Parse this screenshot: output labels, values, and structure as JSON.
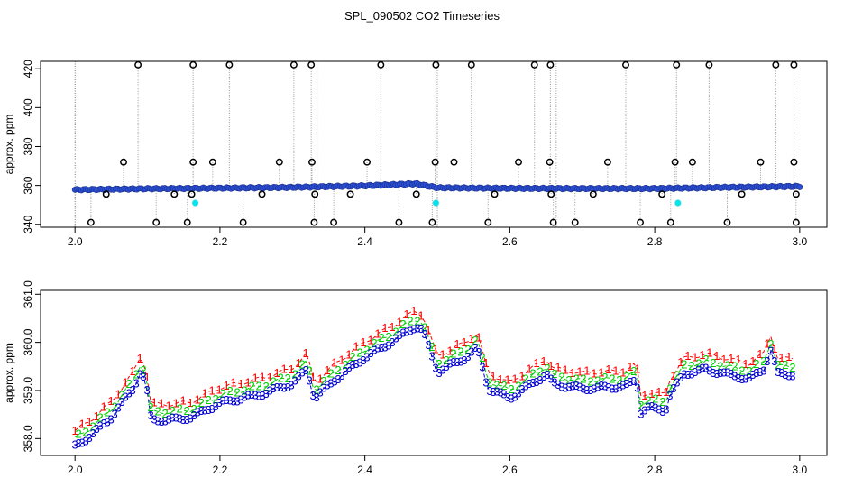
{
  "title": "SPL_090502  CO2 Timeseries",
  "colors": {
    "series1": "#ff0000",
    "series2": "#00cd00",
    "series3": "#0000cd",
    "dot_blue": "#2a4fd6",
    "dot_cyan": "#00e5ee",
    "outlier": "#000000",
    "line_gray": "#9a9a9a"
  },
  "chart_data": [
    {
      "type": "scatter",
      "panel": "top",
      "ylabel": "approx. ppm",
      "xlim": [
        2.0,
        3.0
      ],
      "ylim": [
        340,
        422
      ],
      "xticks": [
        "2.0",
        "2.2",
        "2.4",
        "2.6",
        "2.8",
        "3.0"
      ],
      "yticks": [
        "340",
        "360",
        "380",
        "400",
        "420"
      ],
      "main_series": {
        "x_start": 2.0,
        "x_end": 3.0,
        "count": 340,
        "baseline": [
          [
            2.0,
            357.8
          ],
          [
            2.1,
            358.3
          ],
          [
            2.2,
            358.6
          ],
          [
            2.3,
            359.0
          ],
          [
            2.4,
            359.8
          ],
          [
            2.47,
            360.9
          ],
          [
            2.5,
            358.8
          ],
          [
            2.6,
            358.5
          ],
          [
            2.7,
            358.4
          ],
          [
            2.8,
            358.4
          ],
          [
            2.9,
            359.0
          ],
          [
            3.0,
            359.5
          ]
        ]
      },
      "cyan_points": [
        [
          2.166,
          351
        ],
        [
          2.498,
          351
        ],
        [
          2.832,
          351
        ]
      ],
      "outliers_high": [
        2.087,
        2.163,
        2.213,
        2.302,
        2.326,
        2.422,
        2.498,
        2.547,
        2.634,
        2.656,
        2.76,
        2.83,
        2.875,
        2.967,
        2.992
      ],
      "outliers_low": [
        2.022,
        2.112,
        2.155,
        2.232,
        2.33,
        2.357,
        2.447,
        2.493,
        2.57,
        2.66,
        2.69,
        2.78,
        2.822,
        2.9,
        2.995
      ],
      "outliers_372": [
        2.067,
        2.163,
        2.19,
        2.282,
        2.327,
        2.403,
        2.497,
        2.523,
        2.612,
        2.655,
        2.735,
        2.828,
        2.852,
        2.946,
        2.992
      ],
      "outliers_356": [
        2.043,
        2.137,
        2.161,
        2.258,
        2.331,
        2.38,
        2.471,
        2.579,
        2.657,
        2.715,
        2.81,
        2.92,
        2.995
      ]
    },
    {
      "type": "line",
      "panel": "bottom",
      "ylabel": "approx. ppm",
      "xlim": [
        2.0,
        3.0
      ],
      "ylim": [
        357.8,
        361.0
      ],
      "xticks": [
        "2.0",
        "2.2",
        "2.4",
        "2.6",
        "2.8",
        "3.0"
      ],
      "yticks": [
        "358.0",
        "359.0",
        "360.0",
        "361.0"
      ],
      "x_start": 2.0,
      "x_end": 2.99,
      "count": 200,
      "base_curve": [
        [
          2.0,
          358.0
        ],
        [
          2.02,
          358.2
        ],
        [
          2.05,
          358.6
        ],
        [
          2.08,
          359.2
        ],
        [
          2.092,
          359.6
        ],
        [
          2.1,
          359.1
        ],
        [
          2.105,
          358.55
        ],
        [
          2.13,
          358.55
        ],
        [
          2.16,
          358.6
        ],
        [
          2.2,
          358.9
        ],
        [
          2.26,
          359.1
        ],
        [
          2.3,
          359.3
        ],
        [
          2.32,
          359.6
        ],
        [
          2.33,
          359.0
        ],
        [
          2.36,
          359.4
        ],
        [
          2.4,
          359.85
        ],
        [
          2.44,
          360.2
        ],
        [
          2.47,
          360.5
        ],
        [
          2.48,
          360.4
        ],
        [
          2.5,
          359.55
        ],
        [
          2.54,
          359.85
        ],
        [
          2.555,
          360.05
        ],
        [
          2.57,
          359.2
        ],
        [
          2.6,
          359.0
        ],
        [
          2.63,
          359.3
        ],
        [
          2.65,
          359.5
        ],
        [
          2.66,
          359.3
        ],
        [
          2.7,
          359.2
        ],
        [
          2.76,
          359.25
        ],
        [
          2.775,
          359.4
        ],
        [
          2.78,
          358.7
        ],
        [
          2.79,
          358.8
        ],
        [
          2.815,
          358.75
        ],
        [
          2.82,
          359.05
        ],
        [
          2.84,
          359.5
        ],
        [
          2.87,
          359.6
        ],
        [
          2.9,
          359.5
        ],
        [
          2.93,
          359.4
        ],
        [
          2.95,
          359.6
        ],
        [
          2.96,
          360.0
        ],
        [
          2.97,
          359.5
        ],
        [
          2.99,
          359.5
        ]
      ],
      "series": [
        {
          "name": "1",
          "offset": 0.16
        },
        {
          "name": "2",
          "offset": 0.0
        },
        {
          "name": "3",
          "offset": -0.17
        }
      ]
    }
  ]
}
